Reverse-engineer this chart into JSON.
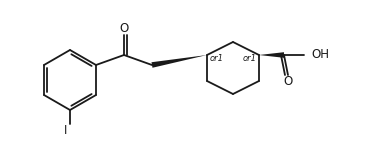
{
  "bg_color": "#ffffff",
  "line_color": "#1a1a1a",
  "text_color": "#1a1a1a",
  "line_width": 1.3,
  "font_size": 7.5,
  "figsize": [
    3.7,
    1.52
  ],
  "dpi": 100,
  "xlim": [
    0,
    3.7
  ],
  "ylim": [
    0,
    1.52
  ]
}
